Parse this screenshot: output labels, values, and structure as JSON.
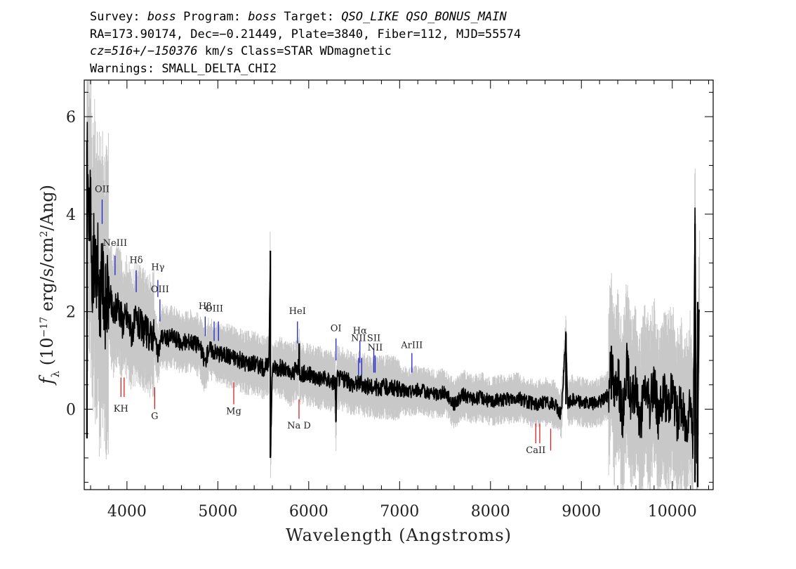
{
  "header": {
    "line1": {
      "survey_label": "Survey: ",
      "survey": "boss",
      "program_label": " Program: ",
      "program": "boss",
      "target_label": " Target: ",
      "target": "QSO_LIKE QSO_BONUS_MAIN"
    },
    "line2": "RA=173.90174, Dec=−0.21449, Plate=3840, Fiber=112, MJD=55574",
    "line3": {
      "cz": "cz=516+/−150376",
      "rest": " km/s Class=STAR WDmagnetic"
    },
    "line4": "Warnings: SMALL_DELTA_CHI2"
  },
  "chart_data": {
    "type": "line",
    "xlabel": "Wavelength (Angstroms)",
    "ylabel": "f_λ (10^-17 erg/s/cm^2/Ang)",
    "xlim": [
      3530,
      10450
    ],
    "ylim": [
      -1.65,
      6.75
    ],
    "xticks": [
      4000,
      5000,
      6000,
      7000,
      8000,
      9000,
      10000
    ],
    "yticks": [
      0,
      2,
      4,
      6
    ],
    "grid": false,
    "colors": {
      "flux": "#000000",
      "error": "#c8c8c8",
      "emission": "#2222cc",
      "absorption": "#dd2222"
    },
    "series": [
      {
        "name": "flux",
        "points": [
          [
            3560,
            5.5
          ],
          [
            3580,
            3.6
          ],
          [
            3600,
            4.2
          ],
          [
            3620,
            2.6
          ],
          [
            3640,
            3.4
          ],
          [
            3660,
            2.4
          ],
          [
            3680,
            3.0
          ],
          [
            3700,
            2.2
          ],
          [
            3730,
            2.7
          ],
          [
            3760,
            2.1
          ],
          [
            3800,
            2.4
          ],
          [
            3850,
            1.9
          ],
          [
            3900,
            2.2
          ],
          [
            3950,
            1.8
          ],
          [
            4000,
            1.9
          ],
          [
            4050,
            1.6
          ],
          [
            4100,
            1.8
          ],
          [
            4150,
            1.7
          ],
          [
            4200,
            1.6
          ],
          [
            4250,
            1.5
          ],
          [
            4300,
            1.55
          ],
          [
            4340,
            1.1
          ],
          [
            4380,
            1.5
          ],
          [
            4450,
            1.45
          ],
          [
            4500,
            1.5
          ],
          [
            4600,
            1.35
          ],
          [
            4700,
            1.4
          ],
          [
            4800,
            1.3
          ],
          [
            4860,
            0.95
          ],
          [
            4900,
            1.25
          ],
          [
            5000,
            1.15
          ],
          [
            5100,
            1.1
          ],
          [
            5200,
            1.05
          ],
          [
            5300,
            0.95
          ],
          [
            5400,
            0.95
          ],
          [
            5500,
            0.85
          ],
          [
            5560,
            0.9
          ],
          [
            5578,
            3.25
          ],
          [
            5580,
            -1.0
          ],
          [
            5600,
            0.85
          ],
          [
            5700,
            0.85
          ],
          [
            5800,
            0.7
          ],
          [
            5890,
            0.85
          ],
          [
            5895,
            1.35
          ],
          [
            5900,
            0.75
          ],
          [
            6000,
            0.7
          ],
          [
            6100,
            0.65
          ],
          [
            6200,
            0.6
          ],
          [
            6290,
            0.55
          ],
          [
            6300,
            -0.25
          ],
          [
            6310,
            0.65
          ],
          [
            6400,
            0.6
          ],
          [
            6500,
            0.5
          ],
          [
            6560,
            0.55
          ],
          [
            6600,
            0.5
          ],
          [
            6700,
            0.45
          ],
          [
            6800,
            0.45
          ],
          [
            6900,
            0.45
          ],
          [
            7000,
            0.4
          ],
          [
            7100,
            0.35
          ],
          [
            7200,
            0.4
          ],
          [
            7300,
            0.35
          ],
          [
            7400,
            0.3
          ],
          [
            7500,
            0.35
          ],
          [
            7600,
            0.1
          ],
          [
            7700,
            0.3
          ],
          [
            7800,
            0.2
          ],
          [
            7900,
            0.25
          ],
          [
            8000,
            0.15
          ],
          [
            8100,
            0.2
          ],
          [
            8200,
            0.2
          ],
          [
            8300,
            0.25
          ],
          [
            8400,
            0.15
          ],
          [
            8500,
            0.1
          ],
          [
            8600,
            0.15
          ],
          [
            8700,
            0.1
          ],
          [
            8780,
            -0.1
          ],
          [
            8830,
            1.55
          ],
          [
            8850,
            0.1
          ],
          [
            8900,
            0.2
          ],
          [
            9000,
            0.15
          ],
          [
            9100,
            0.1
          ],
          [
            9200,
            0.15
          ],
          [
            9300,
            0.3
          ],
          [
            9330,
            1.3
          ],
          [
            9360,
            0.2
          ],
          [
            9400,
            0.8
          ],
          [
            9450,
            -0.2
          ],
          [
            9500,
            0.9
          ],
          [
            9550,
            0.1
          ],
          [
            9600,
            0.4
          ],
          [
            9650,
            -0.3
          ],
          [
            9700,
            0.5
          ],
          [
            9750,
            0.0
          ],
          [
            9800,
            0.6
          ],
          [
            9850,
            -0.2
          ],
          [
            9900,
            0.3
          ],
          [
            9950,
            0.1
          ],
          [
            10000,
            0.4
          ],
          [
            10050,
            -0.2
          ],
          [
            10100,
            0.1
          ],
          [
            10150,
            -0.4
          ],
          [
            10200,
            0.3
          ],
          [
            10230,
            -0.8
          ],
          [
            10250,
            3.8
          ],
          [
            10270,
            -1.2
          ],
          [
            10300,
            2.2
          ]
        ]
      }
    ],
    "line_labels": [
      {
        "label": "OII",
        "wavelength": 3727,
        "kind": "emission",
        "tick_from": 4.3,
        "tick_to": 3.8,
        "label_y": 4.45
      },
      {
        "label": "NeIII",
        "wavelength": 3869,
        "kind": "emission",
        "tick_from": 3.15,
        "tick_to": 2.75,
        "label_y": 3.35
      },
      {
        "label": "Hδ",
        "wavelength": 4102,
        "kind": "emission",
        "tick_from": 2.85,
        "tick_to": 2.4,
        "label_y": 3.0
      },
      {
        "label": "Hγ",
        "wavelength": 4340,
        "kind": "emission",
        "tick_from": 2.65,
        "tick_to": 2.3,
        "label_y": 2.85
      },
      {
        "label": "OIII",
        "wavelength": 4363,
        "kind": "emission",
        "tick_from": 2.25,
        "tick_to": 1.8,
        "label_y": 2.4
      },
      {
        "label": "Hβ",
        "wavelength": 4861,
        "kind": "emission",
        "tick_from": 1.9,
        "tick_to": 1.5,
        "label_y": 2.05
      },
      {
        "label": "OIII",
        "wavelength": 4959,
        "kind": "emission",
        "tick_from": 1.8,
        "tick_to": 1.4,
        "label_y": 2.0
      },
      {
        "label": "",
        "wavelength": 5007,
        "kind": "emission",
        "tick_from": 1.8,
        "tick_to": 1.4
      },
      {
        "label": "HeI",
        "wavelength": 5876,
        "kind": "emission",
        "tick_from": 1.8,
        "tick_to": 1.35,
        "label_y": 1.95
      },
      {
        "label": "OI",
        "wavelength": 6300,
        "kind": "emission",
        "tick_from": 1.45,
        "tick_to": 1.0,
        "label_y": 1.6
      },
      {
        "label": "NII",
        "wavelength": 6548,
        "kind": "emission",
        "tick_from": 1.05,
        "tick_to": 0.7,
        "label_y": 1.4
      },
      {
        "label": "Hα",
        "wavelength": 6563,
        "kind": "emission",
        "tick_from": 1.4,
        "tick_to": 0.95,
        "label_y": 1.55
      },
      {
        "label": "",
        "wavelength": 6583,
        "kind": "emission",
        "tick_from": 1.05,
        "tick_to": 0.7
      },
      {
        "label": "SII",
        "wavelength": 6716,
        "kind": "emission",
        "tick_from": 1.25,
        "tick_to": 0.75,
        "label_y": 1.4
      },
      {
        "label": "NII",
        "wavelength": 6731,
        "kind": "emission",
        "tick_from": 1.1,
        "tick_to": 0.75,
        "label_y": 1.2
      },
      {
        "label": "ArIII",
        "wavelength": 7135,
        "kind": "emission",
        "tick_from": 1.15,
        "tick_to": 0.75,
        "label_y": 1.25
      },
      {
        "label": "KH",
        "wavelength": 3934,
        "kind": "absorption",
        "tick_from": 0.65,
        "tick_to": 0.25,
        "label_y": -0.05
      },
      {
        "label": "",
        "wavelength": 3969,
        "kind": "absorption",
        "tick_from": 0.65,
        "tick_to": 0.25
      },
      {
        "label": "G",
        "wavelength": 4305,
        "kind": "absorption",
        "tick_from": 0.45,
        "tick_to": 0.0,
        "label_y": -0.2
      },
      {
        "label": "Mg",
        "wavelength": 5175,
        "kind": "absorption",
        "tick_from": 0.55,
        "tick_to": 0.1,
        "label_y": -0.1
      },
      {
        "label": "Na D",
        "wavelength": 5893,
        "kind": "absorption",
        "tick_from": 0.2,
        "tick_to": -0.2,
        "label_y": -0.4
      },
      {
        "label": "CaII",
        "wavelength": 8498,
        "kind": "absorption",
        "tick_from": -0.3,
        "tick_to": -0.7,
        "label_y": -0.9
      },
      {
        "label": "",
        "wavelength": 8542,
        "kind": "absorption",
        "tick_from": -0.3,
        "tick_to": -0.7
      },
      {
        "label": "",
        "wavelength": 8662,
        "kind": "absorption",
        "tick_from": -0.4,
        "tick_to": -0.85
      }
    ]
  }
}
